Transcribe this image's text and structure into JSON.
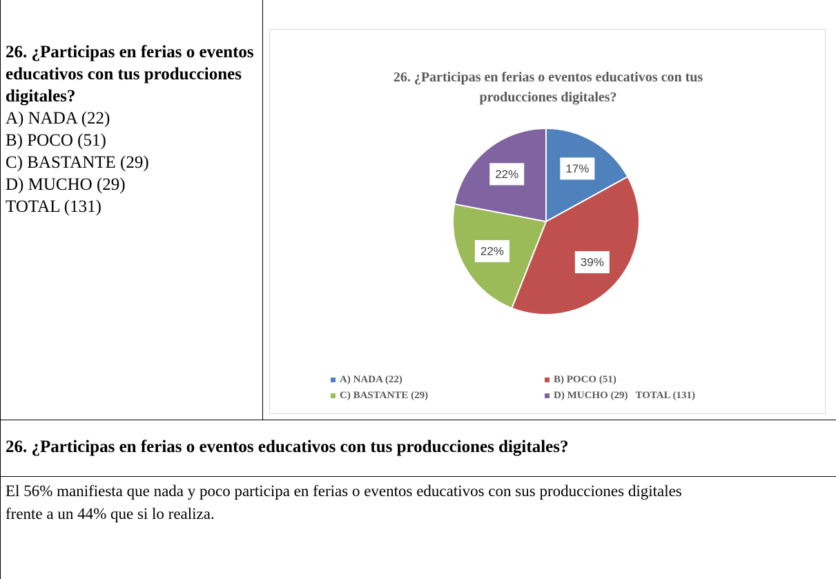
{
  "left": {
    "title": "26. ¿Participas en ferias o eventos educativos con tus producciones digitales?",
    "options": [
      "A) NADA (22)",
      "B) POCO (51)",
      "C) BASTANTE (29)",
      "D) MUCHO (29)",
      "TOTAL (131)"
    ]
  },
  "chart_data": {
    "type": "pie",
    "title": "26. ¿Participas en ferias o eventos educativos con tus producciones digitales?",
    "categories": [
      "A) NADA (22)",
      "B) POCO (51)",
      "C) BASTANTE (29)",
      "D) MUCHO (29)   TOTAL (131)"
    ],
    "values": [
      17,
      39,
      22,
      22
    ],
    "value_labels": [
      "17%",
      "39%",
      "22%",
      "22%"
    ],
    "colors": [
      "#4f81bd",
      "#c0504d",
      "#9bbb59",
      "#8064a2"
    ],
    "legend": "bottom"
  },
  "heading": "26. ¿Participas en ferias o eventos educativos con tus producciones digitales?",
  "paragraph": "El 56% manifiesta que nada y poco participa en ferias o eventos educativos con sus producciones digitales frente a un 44% que si lo realiza."
}
